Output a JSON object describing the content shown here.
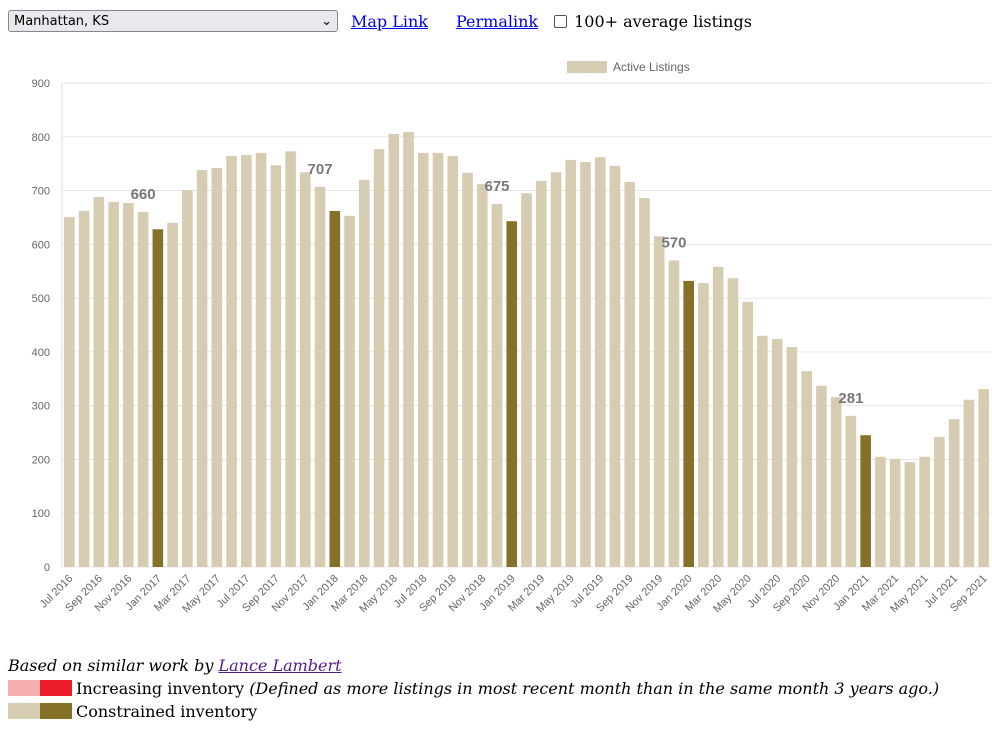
{
  "controls": {
    "location": "Manhattan, KS",
    "links": [
      "Map Link",
      "Permalink"
    ],
    "checkbox": "100+ average listings"
  },
  "chart_data": {
    "type": "bar",
    "categories": [
      "Jul 2016",
      null,
      "Sep 2016",
      null,
      "Nov 2016",
      null,
      "Jan 2017",
      null,
      "Mar 2017",
      null,
      "May 2017",
      null,
      "Jul 2017",
      null,
      "Sep 2017",
      null,
      "Nov 2017",
      null,
      "Jan 2018",
      null,
      "Mar 2018",
      null,
      "May 2018",
      null,
      "Jul 2018",
      null,
      "Sep 2018",
      null,
      "Nov 2018",
      null,
      "Jan 2019",
      null,
      "Mar 2019",
      null,
      "May 2019",
      null,
      "Jul 2019",
      null,
      "Sep 2019",
      null,
      "Nov 2019",
      null,
      "Jan 2020",
      null,
      "Mar 2020",
      null,
      "May 2020",
      null,
      "Jul 2020",
      null,
      "Sep 2020",
      null,
      "Nov 2020",
      null,
      "Jan 2021",
      null,
      "Mar 2021",
      null,
      "May 2021",
      null,
      "Jul 2021",
      null,
      "Sep 2021"
    ],
    "series": [
      {
        "name": "Active Listings",
        "color": "#d5ccb1",
        "values": [
          651,
          662,
          688,
          679,
          677,
          660,
          628,
          640,
          701,
          738,
          742,
          764,
          766,
          770,
          747,
          773,
          734,
          707,
          662,
          653,
          720,
          777,
          805,
          809,
          770,
          770,
          764,
          733,
          712,
          675,
          643,
          695,
          718,
          734,
          757,
          753,
          762,
          746,
          716,
          686,
          615,
          570,
          532,
          528,
          558,
          537,
          493,
          430,
          424,
          409,
          364,
          337,
          316,
          281,
          245,
          205,
          201,
          195,
          205,
          242,
          275,
          311,
          331
        ],
        "value_labels": [
          null,
          null,
          null,
          null,
          null,
          "660",
          null,
          null,
          null,
          null,
          null,
          null,
          null,
          null,
          null,
          null,
          null,
          "707",
          null,
          null,
          null,
          null,
          null,
          null,
          null,
          null,
          null,
          null,
          null,
          "675",
          null,
          null,
          null,
          null,
          null,
          null,
          null,
          null,
          null,
          null,
          null,
          "570",
          null,
          null,
          null,
          null,
          null,
          null,
          null,
          null,
          null,
          null,
          null,
          "281",
          null,
          null,
          null,
          null,
          null,
          null,
          null,
          null,
          null
        ],
        "colors": [
          "#d5ccb1",
          "#d5ccb1",
          "#d5ccb1",
          "#d5ccb1",
          "#d5ccb1",
          "#d5ccb1",
          "#857228",
          "#d5ccb1",
          "#d5ccb1",
          "#d5ccb1",
          "#d5ccb1",
          "#d5ccb1",
          "#d5ccb1",
          "#d5ccb1",
          "#d5ccb1",
          "#d5ccb1",
          "#d5ccb1",
          "#d5ccb1",
          "#857228",
          "#d5ccb1",
          "#d5ccb1",
          "#d5ccb1",
          "#d5ccb1",
          "#d5ccb1",
          "#d5ccb1",
          "#d5ccb1",
          "#d5ccb1",
          "#d5ccb1",
          "#d5ccb1",
          "#d5ccb1",
          "#857228",
          "#d5ccb1",
          "#d5ccb1",
          "#d5ccb1",
          "#d5ccb1",
          "#d5ccb1",
          "#d5ccb1",
          "#d5ccb1",
          "#d5ccb1",
          "#d5ccb1",
          "#d5ccb1",
          "#d5ccb1",
          "#857228",
          "#d5ccb1",
          "#d5ccb1",
          "#d5ccb1",
          "#d5ccb1",
          "#d5ccb1",
          "#d5ccb1",
          "#d5ccb1",
          "#d5ccb1",
          "#d5ccb1",
          "#d5ccb1",
          "#d5ccb1",
          "#857228",
          "#d5ccb1",
          "#d5ccb1",
          "#d5ccb1",
          "#d5ccb1",
          "#d5ccb1",
          "#d5ccb1",
          "#d5ccb1",
          "#d5ccb1"
        ]
      }
    ],
    "ylim": [
      0,
      900
    ],
    "yticks": [
      0,
      100,
      200,
      300,
      400,
      500,
      600,
      700,
      800,
      900
    ],
    "grid": true,
    "legend": "top"
  },
  "footer": {
    "credit": "Based on similar work by",
    "credit_link": "Lance Lambert",
    "legend": [
      {
        "label": "Increasing inventory",
        "note": "(Defined as more listings in most recent month than in the same month 3 years ago.)",
        "colors": [
          "#f6afaf",
          "#ea1c2a"
        ]
      },
      {
        "label": "Constrained inventory",
        "note": null,
        "colors": [
          "#d5ccb1",
          "#857228"
        ]
      }
    ]
  }
}
